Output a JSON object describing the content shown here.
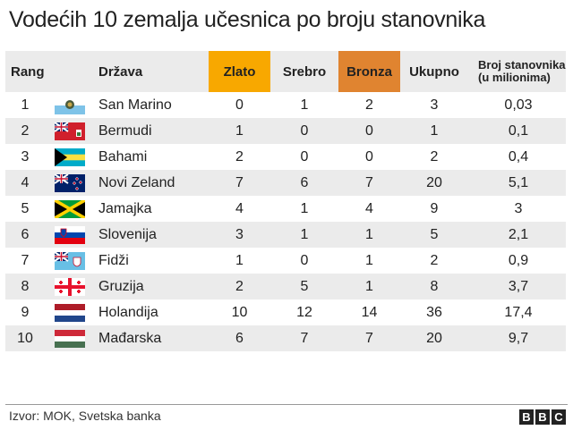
{
  "title": "Vodećih 10 zemalja učesnica po broju stanovnika",
  "colors": {
    "gold": "#f8a800",
    "bronze": "#e08430",
    "row_alt": "#ebebeb"
  },
  "headers": {
    "rang": "Rang",
    "country": "Država",
    "gold": "Zlato",
    "silver": "Srebro",
    "bronze": "Bronza",
    "total": "Ukupno",
    "population": "Broj stanovnika (u milionima)"
  },
  "rows": [
    {
      "rank": "1",
      "flag": "san-marino-flag",
      "country": "San Marino",
      "gold": "0",
      "silver": "1",
      "bronze": "2",
      "total": "3",
      "population": "0,03"
    },
    {
      "rank": "2",
      "flag": "bermuda-flag",
      "country": "Bermudi",
      "gold": "1",
      "silver": "0",
      "bronze": "0",
      "total": "1",
      "population": "0,1"
    },
    {
      "rank": "3",
      "flag": "bahamas-flag",
      "country": "Bahami",
      "gold": "2",
      "silver": "0",
      "bronze": "0",
      "total": "2",
      "population": "0,4"
    },
    {
      "rank": "4",
      "flag": "new-zealand-flag",
      "country": "Novi Zeland",
      "gold": "7",
      "silver": "6",
      "bronze": "7",
      "total": "20",
      "population": "5,1"
    },
    {
      "rank": "5",
      "flag": "jamaica-flag",
      "country": "Jamajka",
      "gold": "4",
      "silver": "1",
      "bronze": "4",
      "total": "9",
      "population": "3"
    },
    {
      "rank": "6",
      "flag": "slovenia-flag",
      "country": "Slovenija",
      "gold": "3",
      "silver": "1",
      "bronze": "1",
      "total": "5",
      "population": "2,1"
    },
    {
      "rank": "7",
      "flag": "fiji-flag",
      "country": "Fidži",
      "gold": "1",
      "silver": "0",
      "bronze": "1",
      "total": "2",
      "population": "0,9"
    },
    {
      "rank": "8",
      "flag": "georgia-flag",
      "country": "Gruzija",
      "gold": "2",
      "silver": "5",
      "bronze": "1",
      "total": "8",
      "population": "3,7"
    },
    {
      "rank": "9",
      "flag": "netherlands-flag",
      "country": "Holandija",
      "gold": "10",
      "silver": "12",
      "bronze": "14",
      "total": "36",
      "population": "17,4"
    },
    {
      "rank": "10",
      "flag": "hungary-flag",
      "country": "Mađarska",
      "gold": "6",
      "silver": "7",
      "bronze": "7",
      "total": "20",
      "population": "9,7"
    }
  ],
  "footer": {
    "source": "Izvor: MOK, Svetska banka",
    "logo": "BBC"
  }
}
